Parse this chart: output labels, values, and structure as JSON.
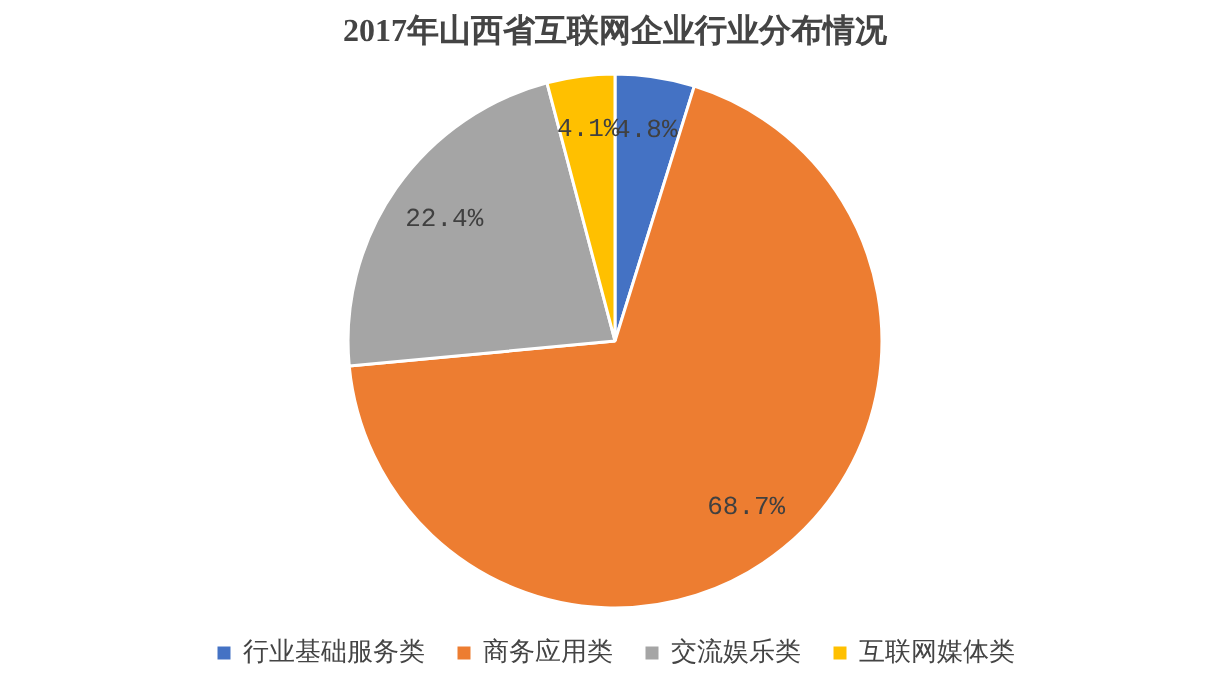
{
  "chart_data": {
    "type": "pie",
    "title": "2017年山西省互联网企业行业分布情况",
    "categories": [
      "行业基础服务类",
      "商务应用类",
      "交流娱乐类",
      "互联网媒体类"
    ],
    "values": [
      4.8,
      68.7,
      22.4,
      4.1
    ],
    "colors": [
      "#4472c4",
      "#ed7d31",
      "#a5a5a5",
      "#ffc000"
    ],
    "value_labels": [
      "4.8%",
      "68.7%",
      "22.4%",
      "4.1%"
    ],
    "legend": "bottom"
  }
}
